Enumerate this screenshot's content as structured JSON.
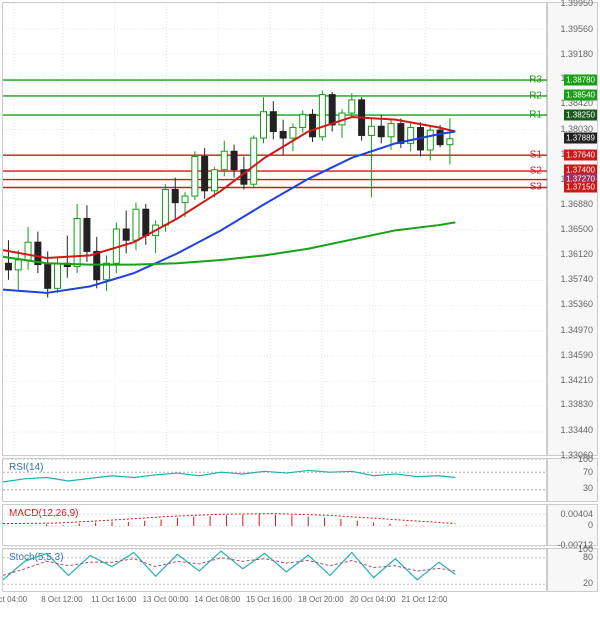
{
  "main": {
    "ylim": [
      1.3306,
      1.3995
    ],
    "yticks": [
      1.3306,
      1.3344,
      1.3383,
      1.3421,
      1.3459,
      1.3497,
      1.3536,
      1.3574,
      1.3612,
      1.365,
      1.3688,
      1.3727,
      1.3765,
      1.3803,
      1.3842,
      1.388,
      1.3918,
      1.3956,
      1.3995
    ],
    "current_price": 1.37889,
    "current_price_bg": "#222222",
    "levels": [
      {
        "id": "R3",
        "label": "R3",
        "value": 1.3878,
        "color": "#18a018",
        "tag_bg": "#18a018",
        "tag_text": "1.38780"
      },
      {
        "id": "R2",
        "label": "R2",
        "value": 1.3854,
        "color": "#18a018",
        "tag_bg": "#18a018",
        "tag_text": "1.38540"
      },
      {
        "id": "R1",
        "label": "R1",
        "value": 1.3825,
        "color": "#18a018",
        "tag_bg": "#1c5a1c",
        "tag_text": "1.38250"
      },
      {
        "id": "S1",
        "label": "S1",
        "value": 1.3764,
        "color": "#d01818",
        "tag_bg": "#d01818",
        "tag_text": "1.37640"
      },
      {
        "id": "S2",
        "label": "S2",
        "value": 1.374,
        "color": "#d01818",
        "tag_bg": "#d01818",
        "tag_text": "1.37400"
      },
      {
        "id": "S2b",
        "label": "",
        "value": 1.3727,
        "color": "#d01818",
        "tag_bg": "#a03060",
        "tag_text": "1.37270"
      },
      {
        "id": "S3",
        "label": "S3",
        "value": 1.3715,
        "color": "#d01818",
        "tag_bg": "#d01818",
        "tag_text": "1.37150"
      }
    ],
    "candles": [
      {
        "x": 0.01,
        "o": 1.36,
        "h": 1.3635,
        "l": 1.3575,
        "c": 1.359,
        "up": false
      },
      {
        "x": 0.028,
        "o": 1.359,
        "h": 1.362,
        "l": 1.356,
        "c": 1.3605,
        "up": true
      },
      {
        "x": 0.046,
        "o": 1.3605,
        "h": 1.3655,
        "l": 1.359,
        "c": 1.3632,
        "up": true
      },
      {
        "x": 0.064,
        "o": 1.3632,
        "h": 1.3648,
        "l": 1.3585,
        "c": 1.3598,
        "up": false
      },
      {
        "x": 0.082,
        "o": 1.3598,
        "h": 1.3618,
        "l": 1.3548,
        "c": 1.3562,
        "up": false
      },
      {
        "x": 0.1,
        "o": 1.3562,
        "h": 1.361,
        "l": 1.3555,
        "c": 1.36,
        "up": true
      },
      {
        "x": 0.118,
        "o": 1.36,
        "h": 1.3642,
        "l": 1.3578,
        "c": 1.3595,
        "up": false
      },
      {
        "x": 0.136,
        "o": 1.3595,
        "h": 1.369,
        "l": 1.3585,
        "c": 1.3668,
        "up": true
      },
      {
        "x": 0.154,
        "o": 1.3668,
        "h": 1.3688,
        "l": 1.3602,
        "c": 1.3618,
        "up": false
      },
      {
        "x": 0.172,
        "o": 1.3618,
        "h": 1.364,
        "l": 1.3562,
        "c": 1.3575,
        "up": false
      },
      {
        "x": 0.19,
        "o": 1.3575,
        "h": 1.3612,
        "l": 1.3558,
        "c": 1.36,
        "up": true
      },
      {
        "x": 0.208,
        "o": 1.36,
        "h": 1.3662,
        "l": 1.3585,
        "c": 1.3652,
        "up": true
      },
      {
        "x": 0.226,
        "o": 1.3652,
        "h": 1.368,
        "l": 1.3615,
        "c": 1.3635,
        "up": false
      },
      {
        "x": 0.244,
        "o": 1.3635,
        "h": 1.3692,
        "l": 1.362,
        "c": 1.3682,
        "up": true
      },
      {
        "x": 0.262,
        "o": 1.3682,
        "h": 1.369,
        "l": 1.3628,
        "c": 1.3642,
        "up": false
      },
      {
        "x": 0.28,
        "o": 1.3642,
        "h": 1.3665,
        "l": 1.3615,
        "c": 1.3658,
        "up": true
      },
      {
        "x": 0.298,
        "o": 1.3658,
        "h": 1.372,
        "l": 1.3648,
        "c": 1.3712,
        "up": true
      },
      {
        "x": 0.316,
        "o": 1.3712,
        "h": 1.373,
        "l": 1.3668,
        "c": 1.3692,
        "up": false
      },
      {
        "x": 0.334,
        "o": 1.3692,
        "h": 1.3708,
        "l": 1.367,
        "c": 1.3702,
        "up": true
      },
      {
        "x": 0.352,
        "o": 1.3702,
        "h": 1.377,
        "l": 1.3696,
        "c": 1.3762,
        "up": true
      },
      {
        "x": 0.37,
        "o": 1.3762,
        "h": 1.3775,
        "l": 1.3698,
        "c": 1.371,
        "up": false
      },
      {
        "x": 0.388,
        "o": 1.371,
        "h": 1.3746,
        "l": 1.37,
        "c": 1.3742,
        "up": true
      },
      {
        "x": 0.406,
        "o": 1.3742,
        "h": 1.3786,
        "l": 1.3732,
        "c": 1.377,
        "up": true
      },
      {
        "x": 0.424,
        "o": 1.377,
        "h": 1.378,
        "l": 1.373,
        "c": 1.3742,
        "up": false
      },
      {
        "x": 0.442,
        "o": 1.3742,
        "h": 1.3762,
        "l": 1.3712,
        "c": 1.372,
        "up": false
      },
      {
        "x": 0.46,
        "o": 1.372,
        "h": 1.3794,
        "l": 1.3715,
        "c": 1.379,
        "up": true
      },
      {
        "x": 0.478,
        "o": 1.379,
        "h": 1.3852,
        "l": 1.3782,
        "c": 1.383,
        "up": true
      },
      {
        "x": 0.496,
        "o": 1.383,
        "h": 1.3846,
        "l": 1.3788,
        "c": 1.38,
        "up": false
      },
      {
        "x": 0.514,
        "o": 1.38,
        "h": 1.3818,
        "l": 1.3765,
        "c": 1.379,
        "up": false
      },
      {
        "x": 0.532,
        "o": 1.379,
        "h": 1.3812,
        "l": 1.377,
        "c": 1.3806,
        "up": true
      },
      {
        "x": 0.55,
        "o": 1.3806,
        "h": 1.3832,
        "l": 1.3798,
        "c": 1.3826,
        "up": true
      },
      {
        "x": 0.568,
        "o": 1.3826,
        "h": 1.3834,
        "l": 1.3784,
        "c": 1.3792,
        "up": false
      },
      {
        "x": 0.586,
        "o": 1.3792,
        "h": 1.3862,
        "l": 1.3786,
        "c": 1.3856,
        "up": true
      },
      {
        "x": 0.604,
        "o": 1.3856,
        "h": 1.386,
        "l": 1.38,
        "c": 1.381,
        "up": false
      },
      {
        "x": 0.622,
        "o": 1.381,
        "h": 1.3834,
        "l": 1.379,
        "c": 1.3828,
        "up": true
      },
      {
        "x": 0.64,
        "o": 1.3828,
        "h": 1.3858,
        "l": 1.382,
        "c": 1.3848,
        "up": true
      },
      {
        "x": 0.658,
        "o": 1.3848,
        "h": 1.3852,
        "l": 1.3786,
        "c": 1.3794,
        "up": false
      },
      {
        "x": 0.676,
        "o": 1.3794,
        "h": 1.382,
        "l": 1.37,
        "c": 1.3808,
        "up": true
      },
      {
        "x": 0.694,
        "o": 1.3808,
        "h": 1.3825,
        "l": 1.3782,
        "c": 1.3792,
        "up": false
      },
      {
        "x": 0.712,
        "o": 1.3792,
        "h": 1.3818,
        "l": 1.3772,
        "c": 1.3812,
        "up": true
      },
      {
        "x": 0.73,
        "o": 1.3812,
        "h": 1.382,
        "l": 1.3775,
        "c": 1.3782,
        "up": false
      },
      {
        "x": 0.748,
        "o": 1.3782,
        "h": 1.3812,
        "l": 1.377,
        "c": 1.3806,
        "up": true
      },
      {
        "x": 0.766,
        "o": 1.3806,
        "h": 1.3814,
        "l": 1.3762,
        "c": 1.3772,
        "up": false
      },
      {
        "x": 0.784,
        "o": 1.3772,
        "h": 1.3808,
        "l": 1.3756,
        "c": 1.3802,
        "up": true
      },
      {
        "x": 0.802,
        "o": 1.3802,
        "h": 1.381,
        "l": 1.3776,
        "c": 1.378,
        "up": false
      },
      {
        "x": 0.82,
        "o": 1.378,
        "h": 1.382,
        "l": 1.375,
        "c": 1.3789,
        "up": true
      }
    ],
    "ma": [
      {
        "id": "ma_red",
        "color": "#d01818",
        "width": 2,
        "pts": [
          [
            0.0,
            1.362
          ],
          [
            0.08,
            1.3608
          ],
          [
            0.16,
            1.3612
          ],
          [
            0.24,
            1.3632
          ],
          [
            0.32,
            1.3668
          ],
          [
            0.4,
            1.371
          ],
          [
            0.48,
            1.376
          ],
          [
            0.56,
            1.38
          ],
          [
            0.64,
            1.3822
          ],
          [
            0.72,
            1.3818
          ],
          [
            0.8,
            1.3806
          ],
          [
            0.83,
            1.38
          ]
        ]
      },
      {
        "id": "ma_blue",
        "color": "#2040e0",
        "width": 2,
        "pts": [
          [
            0.0,
            1.356
          ],
          [
            0.08,
            1.3555
          ],
          [
            0.16,
            1.3565
          ],
          [
            0.24,
            1.3585
          ],
          [
            0.32,
            1.3615
          ],
          [
            0.4,
            1.365
          ],
          [
            0.48,
            1.369
          ],
          [
            0.56,
            1.3728
          ],
          [
            0.64,
            1.376
          ],
          [
            0.72,
            1.3782
          ],
          [
            0.8,
            1.3796
          ],
          [
            0.83,
            1.38
          ]
        ]
      },
      {
        "id": "ma_green",
        "color": "#18a018",
        "width": 2,
        "pts": [
          [
            0.0,
            1.361
          ],
          [
            0.08,
            1.36
          ],
          [
            0.16,
            1.3598
          ],
          [
            0.24,
            1.3598
          ],
          [
            0.32,
            1.36
          ],
          [
            0.4,
            1.3605
          ],
          [
            0.48,
            1.3612
          ],
          [
            0.56,
            1.3622
          ],
          [
            0.64,
            1.3636
          ],
          [
            0.72,
            1.365
          ],
          [
            0.8,
            1.3658
          ],
          [
            0.83,
            1.3662
          ]
        ]
      }
    ]
  },
  "xaxis": {
    "ticks": [
      {
        "x": 0.02,
        "label": "ct 04:00"
      },
      {
        "x": 0.11,
        "label": "8 Oct 12:00"
      },
      {
        "x": 0.205,
        "label": "11 Oct 16:00"
      },
      {
        "x": 0.3,
        "label": "13 Oct 00:00"
      },
      {
        "x": 0.395,
        "label": "14 Oct 08:00"
      },
      {
        "x": 0.49,
        "label": "15 Oct 16:00"
      },
      {
        "x": 0.585,
        "label": "18 Oct 20:00"
      },
      {
        "x": 0.68,
        "label": "20 Oct 04:00"
      },
      {
        "x": 0.775,
        "label": "21 Oct 12:00"
      }
    ]
  },
  "rsi": {
    "label": "RSI(14)",
    "label_color": "#2e6fb0",
    "ylim": [
      0,
      100
    ],
    "yticks": [
      30,
      70,
      100
    ],
    "line_color": "#20b0b0",
    "dash_color": "#b0b0b0",
    "pts": [
      [
        0.0,
        48
      ],
      [
        0.04,
        55
      ],
      [
        0.08,
        58
      ],
      [
        0.12,
        50
      ],
      [
        0.16,
        56
      ],
      [
        0.2,
        62
      ],
      [
        0.24,
        58
      ],
      [
        0.28,
        64
      ],
      [
        0.32,
        68
      ],
      [
        0.36,
        62
      ],
      [
        0.4,
        70
      ],
      [
        0.44,
        66
      ],
      [
        0.48,
        72
      ],
      [
        0.52,
        68
      ],
      [
        0.56,
        74
      ],
      [
        0.6,
        70
      ],
      [
        0.64,
        72
      ],
      [
        0.68,
        62
      ],
      [
        0.72,
        66
      ],
      [
        0.76,
        60
      ],
      [
        0.8,
        62
      ],
      [
        0.83,
        58
      ]
    ]
  },
  "macd": {
    "label": "MACD(12,26,9)",
    "label_color": "#d01818",
    "ylim": [
      -0.00712,
      0.00712
    ],
    "yticks": [
      -0.00712,
      0,
      0.00404
    ],
    "hist_color": "#d01818",
    "macd_color": "#d01818",
    "hist": [
      [
        0.05,
        0.0002
      ],
      [
        0.08,
        0.0006
      ],
      [
        0.11,
        0.0003
      ],
      [
        0.14,
        0.0008
      ],
      [
        0.17,
        0.0012
      ],
      [
        0.2,
        0.0015
      ],
      [
        0.23,
        0.0014
      ],
      [
        0.26,
        0.0018
      ],
      [
        0.29,
        0.0022
      ],
      [
        0.32,
        0.0028
      ],
      [
        0.35,
        0.0032
      ],
      [
        0.38,
        0.0034
      ],
      [
        0.41,
        0.0036
      ],
      [
        0.44,
        0.0038
      ],
      [
        0.47,
        0.004
      ],
      [
        0.5,
        0.0038
      ],
      [
        0.53,
        0.0036
      ],
      [
        0.56,
        0.0032
      ],
      [
        0.59,
        0.0028
      ],
      [
        0.62,
        0.0024
      ],
      [
        0.65,
        0.0018
      ],
      [
        0.68,
        0.0012
      ],
      [
        0.71,
        0.0008
      ],
      [
        0.74,
        0.0004
      ],
      [
        0.77,
        0.0001
      ]
    ],
    "macd_line": [
      [
        0.0,
        0.0008
      ],
      [
        0.1,
        0.001
      ],
      [
        0.2,
        0.002
      ],
      [
        0.3,
        0.0032
      ],
      [
        0.4,
        0.004
      ],
      [
        0.5,
        0.0042
      ],
      [
        0.6,
        0.0036
      ],
      [
        0.7,
        0.0024
      ],
      [
        0.8,
        0.0012
      ],
      [
        0.83,
        0.0008
      ]
    ]
  },
  "stoch": {
    "label": "Stoch(5,5,3)",
    "label_color": "#2e6fb0",
    "ylim": [
      0,
      100
    ],
    "yticks": [
      20,
      80,
      100
    ],
    "k_color": "#20b0b0",
    "d_color": "#b0506a",
    "k": [
      [
        0.0,
        30
      ],
      [
        0.04,
        72
      ],
      [
        0.08,
        90
      ],
      [
        0.12,
        40
      ],
      [
        0.16,
        85
      ],
      [
        0.2,
        60
      ],
      [
        0.24,
        92
      ],
      [
        0.28,
        38
      ],
      [
        0.32,
        88
      ],
      [
        0.36,
        50
      ],
      [
        0.4,
        95
      ],
      [
        0.44,
        55
      ],
      [
        0.48,
        90
      ],
      [
        0.52,
        48
      ],
      [
        0.56,
        86
      ],
      [
        0.6,
        40
      ],
      [
        0.64,
        92
      ],
      [
        0.68,
        35
      ],
      [
        0.72,
        78
      ],
      [
        0.76,
        30
      ],
      [
        0.8,
        70
      ],
      [
        0.83,
        42
      ]
    ],
    "d": [
      [
        0.0,
        40
      ],
      [
        0.04,
        55
      ],
      [
        0.08,
        72
      ],
      [
        0.12,
        62
      ],
      [
        0.16,
        70
      ],
      [
        0.2,
        70
      ],
      [
        0.24,
        78
      ],
      [
        0.28,
        60
      ],
      [
        0.32,
        72
      ],
      [
        0.36,
        66
      ],
      [
        0.4,
        80
      ],
      [
        0.44,
        72
      ],
      [
        0.48,
        78
      ],
      [
        0.52,
        68
      ],
      [
        0.56,
        74
      ],
      [
        0.6,
        62
      ],
      [
        0.64,
        74
      ],
      [
        0.68,
        58
      ],
      [
        0.72,
        62
      ],
      [
        0.76,
        50
      ],
      [
        0.8,
        56
      ],
      [
        0.83,
        50
      ]
    ]
  },
  "colors": {
    "candle_up_fill": "#ffffff",
    "candle_up_border": "#129e12",
    "candle_down_fill": "#222222",
    "candle_down_border": "#222222",
    "grid": "#e4e4e4"
  }
}
